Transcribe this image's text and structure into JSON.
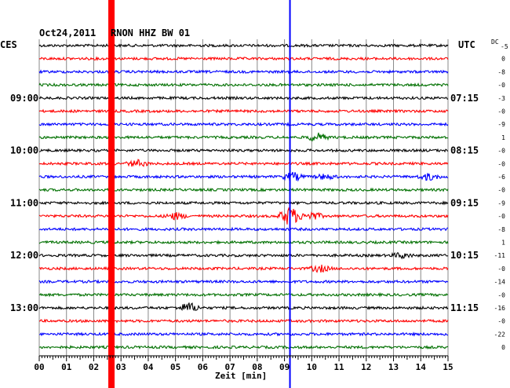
{
  "header": {
    "date": "Oct24,2011",
    "station": "RNON HHZ BW 01",
    "left_zone": "CES",
    "right_zone": "UTC",
    "dc_label": "DC",
    "dc_first": "-5"
  },
  "chart_data": {
    "type": "line",
    "title": "Oct24,2011  RNON HHZ BW 01",
    "xlabel": "Zeit [min]",
    "xlim": [
      0,
      15
    ],
    "x_ticks": [
      "00",
      "01",
      "02",
      "03",
      "04",
      "05",
      "06",
      "07",
      "08",
      "09",
      "10",
      "11",
      "12",
      "13",
      "14",
      "15"
    ],
    "row_colors": [
      "#000000",
      "#ff0000",
      "#0000ff",
      "#007000"
    ],
    "row_count": 24,
    "left_hour_labels": [
      {
        "row": 4,
        "text": "09:00"
      },
      {
        "row": 8,
        "text": "10:00"
      },
      {
        "row": 12,
        "text": "11:00"
      },
      {
        "row": 16,
        "text": "12:00"
      },
      {
        "row": 20,
        "text": "13:00"
      }
    ],
    "right_hour_labels": [
      {
        "row": 4,
        "text": "07:15"
      },
      {
        "row": 8,
        "text": "08:15"
      },
      {
        "row": 12,
        "text": "09:15"
      },
      {
        "row": 16,
        "text": "10:15"
      },
      {
        "row": 20,
        "text": "11:15"
      }
    ],
    "dc_offsets": [
      "0",
      "-8",
      "-0",
      "-3",
      "-0",
      "-9",
      "1",
      "-0",
      "-0",
      "-6",
      "-0",
      "-9",
      "-0",
      "-8",
      "1",
      "-11",
      "-0",
      "-14",
      "-0",
      "-16",
      "-0",
      "-22",
      "0"
    ],
    "markers": [
      {
        "name": "red marker",
        "minute": 2.65,
        "color": "#ff0000"
      },
      {
        "name": "blue marker",
        "minute": 9.2,
        "color": "#0000ff"
      }
    ],
    "events": [
      {
        "row": 7,
        "minute": 10.2,
        "amp": 5
      },
      {
        "row": 9,
        "minute": 3.6,
        "amp": 4
      },
      {
        "row": 10,
        "minute": 9.3,
        "amp": 5
      },
      {
        "row": 10,
        "minute": 10.5,
        "amp": 3
      },
      {
        "row": 10,
        "minute": 14.3,
        "amp": 4
      },
      {
        "row": 13,
        "minute": 9.2,
        "amp": 12
      },
      {
        "row": 13,
        "minute": 5.0,
        "amp": 4
      },
      {
        "row": 13,
        "minute": 10.0,
        "amp": 5
      },
      {
        "row": 17,
        "minute": 10.3,
        "amp": 4
      },
      {
        "row": 16,
        "minute": 13.3,
        "amp": 3
      },
      {
        "row": 20,
        "minute": 5.5,
        "amp": 6
      }
    ],
    "grid": true
  }
}
